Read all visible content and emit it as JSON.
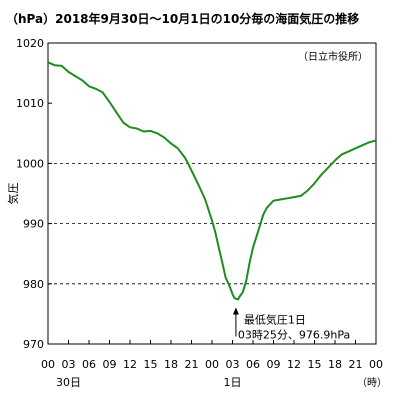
{
  "chart_data": {
    "type": "line",
    "title": "（hPa）2018年9月30日～10月1日の10分毎の海面気圧の推移",
    "ylabel": "気圧",
    "station": "（日立市役所）",
    "x_unit": "（時）",
    "ylim": [
      970,
      1020
    ],
    "xlim": [
      0,
      48
    ],
    "y_ticks": [
      "1020",
      "1010",
      "1000",
      "990",
      "980",
      "970"
    ],
    "x_ticks": [
      "00",
      "03",
      "06",
      "09",
      "12",
      "15",
      "18",
      "21",
      "00",
      "03",
      "06",
      "09",
      "12",
      "15",
      "18",
      "21",
      "00"
    ],
    "day_labels": [
      {
        "x": 3,
        "text": "30日"
      },
      {
        "x": 27,
        "text": "1日"
      }
    ],
    "dashed_grid_y": [
      1000,
      990,
      980
    ],
    "line_color": "#1e8c1e",
    "series": [
      {
        "x": [
          0,
          1,
          2,
          3,
          4,
          5,
          6,
          7,
          8,
          9,
          10,
          11,
          12,
          13,
          14,
          15,
          16,
          17,
          18,
          19,
          20,
          20.5,
          21,
          22,
          23,
          24,
          24.5,
          25,
          25.5,
          26,
          26.5,
          27,
          27.3,
          27.8,
          28,
          28.5,
          29,
          29.5,
          30,
          31,
          31.5,
          32,
          33,
          34,
          35,
          36,
          37,
          38,
          39,
          40,
          41,
          42,
          43,
          44,
          45,
          46,
          47,
          48
        ],
        "y": [
          1016.8,
          1016.3,
          1016.2,
          1015.2,
          1014.5,
          1013.8,
          1012.8,
          1012.4,
          1011.8,
          1010.2,
          1008.5,
          1006.8,
          1006.0,
          1005.8,
          1005.3,
          1005.4,
          1005.0,
          1004.3,
          1003.3,
          1002.5,
          1001.0,
          1000.0,
          998.8,
          996.5,
          994.0,
          990.5,
          988.5,
          986.0,
          983.5,
          981.0,
          979.8,
          978.3,
          977.6,
          977.4,
          977.8,
          978.6,
          980.5,
          983.5,
          986.0,
          989.6,
          991.5,
          992.6,
          993.8,
          994.0,
          994.2,
          994.4,
          994.6,
          995.5,
          996.7,
          998.1,
          999.3,
          1000.5,
          1001.5,
          1002.0,
          1002.5,
          1003.0,
          1003.5,
          1003.8
        ]
      }
    ],
    "annotation": {
      "x": 27.5,
      "y": 976.9,
      "line1": "最低気圧1日",
      "line2": "03時25分、976.9hPa"
    }
  }
}
